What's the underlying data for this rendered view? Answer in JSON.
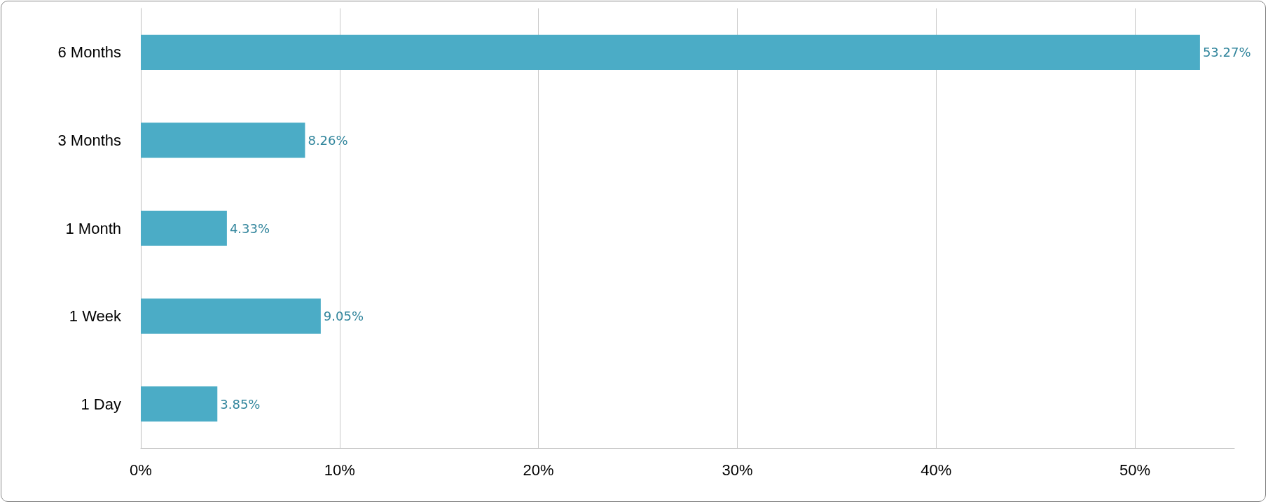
{
  "chart_data": {
    "type": "bar",
    "orientation": "horizontal",
    "categories": [
      "6 Months",
      "3 Months",
      "1 Month",
      "1 Week",
      "1 Day"
    ],
    "values": [
      53.27,
      8.26,
      4.33,
      9.05,
      3.85
    ],
    "value_labels": [
      "53.27%",
      "8.26%",
      "4.33%",
      "9.05%",
      "3.85%"
    ],
    "color": "#4bacc6",
    "xlim": [
      0,
      55
    ],
    "xticks": [
      {
        "value": 0,
        "label": "0%"
      },
      {
        "value": 10,
        "label": "10%"
      },
      {
        "value": 20,
        "label": "20%"
      },
      {
        "value": 30,
        "label": "30%"
      },
      {
        "value": 40,
        "label": "40%"
      },
      {
        "value": 50,
        "label": "50%"
      }
    ],
    "grid": "x"
  }
}
